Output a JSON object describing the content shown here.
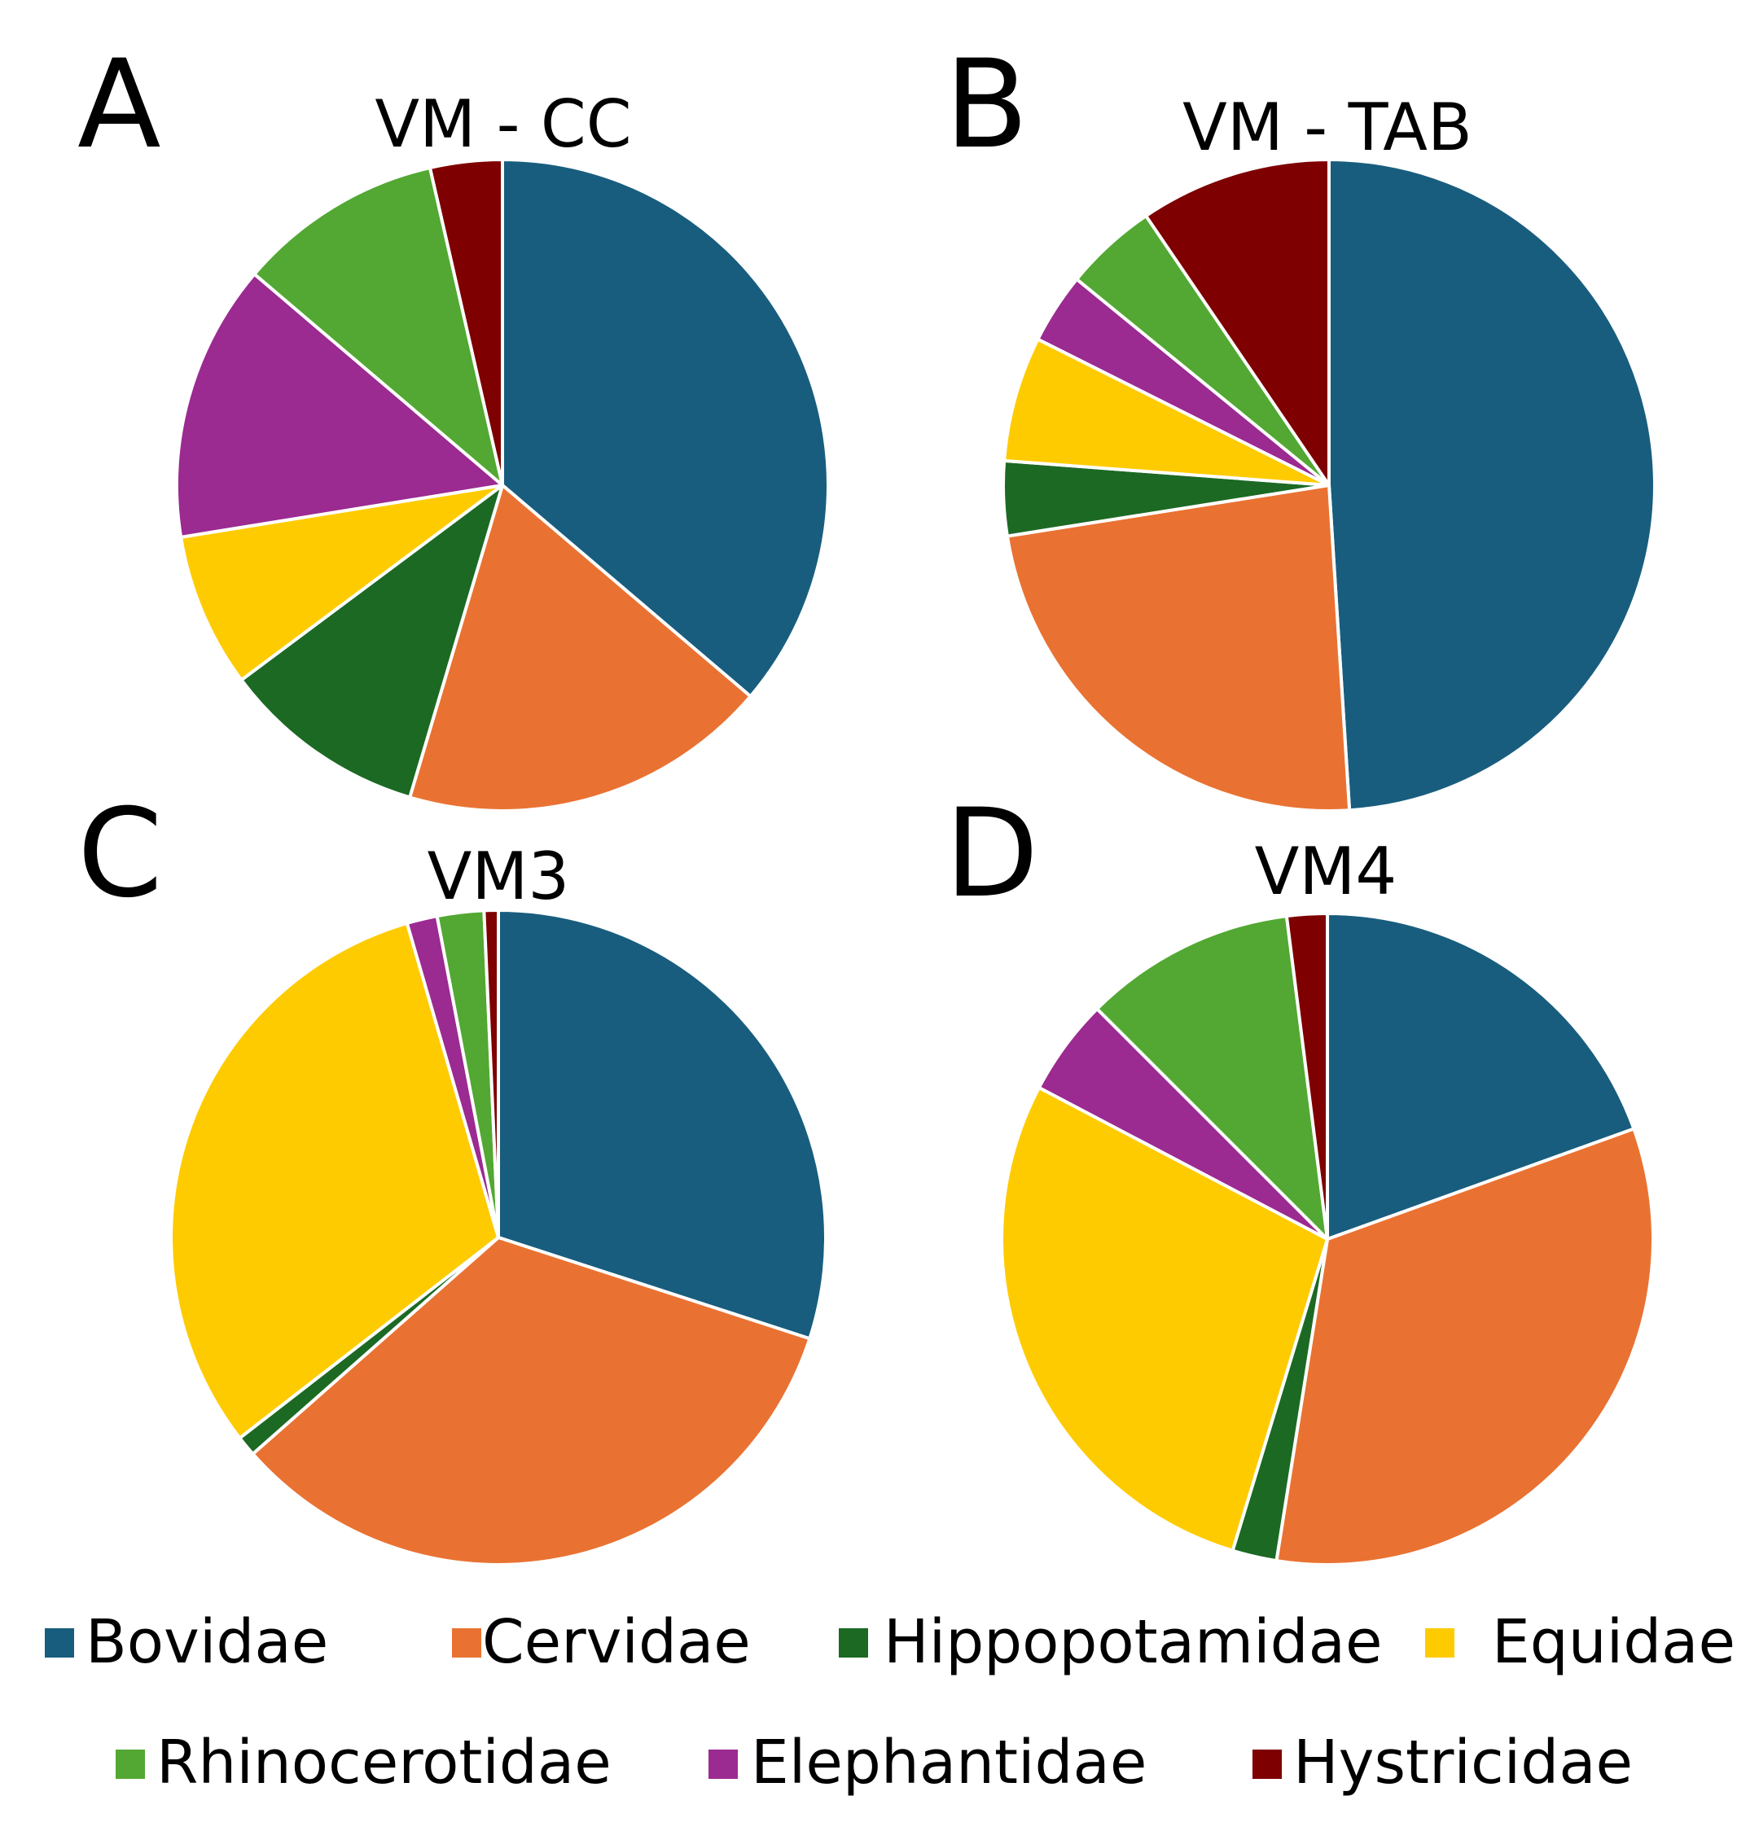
{
  "chart_data": [
    {
      "type": "pie",
      "panel": "A",
      "title": "VM - CC",
      "categories": [
        "Bovidae",
        "Cervidae",
        "Hippopotamidae",
        "Equidae",
        "Elephantidae",
        "Rhinocerotidae",
        "Hystricidae"
      ],
      "values": [
        35.5,
        18.0,
        10.0,
        7.5,
        13.5,
        10.0,
        3.5
      ]
    },
    {
      "type": "pie",
      "panel": "B",
      "title": "VM - TAB",
      "categories": [
        "Bovidae",
        "Cervidae",
        "Hippopotamidae",
        "Equidae",
        "Elephantidae",
        "Rhinocerotidae",
        "Hystricidae"
      ],
      "values": [
        49.0,
        23.5,
        3.7,
        6.2,
        3.5,
        4.6,
        9.5
      ]
    },
    {
      "type": "pie",
      "panel": "C",
      "title": "VM3",
      "categories": [
        "Bovidae",
        "Cervidae",
        "Hippopotamidae",
        "Equidae",
        "Elephantidae",
        "Rhinocerotidae",
        "Hystricidae"
      ],
      "values": [
        30.0,
        33.5,
        1.0,
        31.0,
        1.5,
        2.3,
        0.7
      ]
    },
    {
      "type": "pie",
      "panel": "D",
      "title": "VM4",
      "categories": [
        "Bovidae",
        "Cervidae",
        "Hippopotamidae",
        "Equidae",
        "Elephantidae",
        "Rhinocerotidae",
        "Hystricidae"
      ],
      "values": [
        19.5,
        33.0,
        2.2,
        28.0,
        4.8,
        10.5,
        2.0
      ]
    }
  ],
  "legend": [
    {
      "name": "Bovidae",
      "color": "#185d7e"
    },
    {
      "name": "Cervidae",
      "color": "#e97232"
    },
    {
      "name": "Hippopotamidae",
      "color": "#1c6924"
    },
    {
      "name": "Equidae",
      "color": "#fecb00"
    },
    {
      "name": "Rhinocerotidae",
      "color": "#52a832"
    },
    {
      "name": "Elephantidae",
      "color": "#9b2a91"
    },
    {
      "name": "Hystricidae",
      "color": "#7e0000"
    }
  ]
}
